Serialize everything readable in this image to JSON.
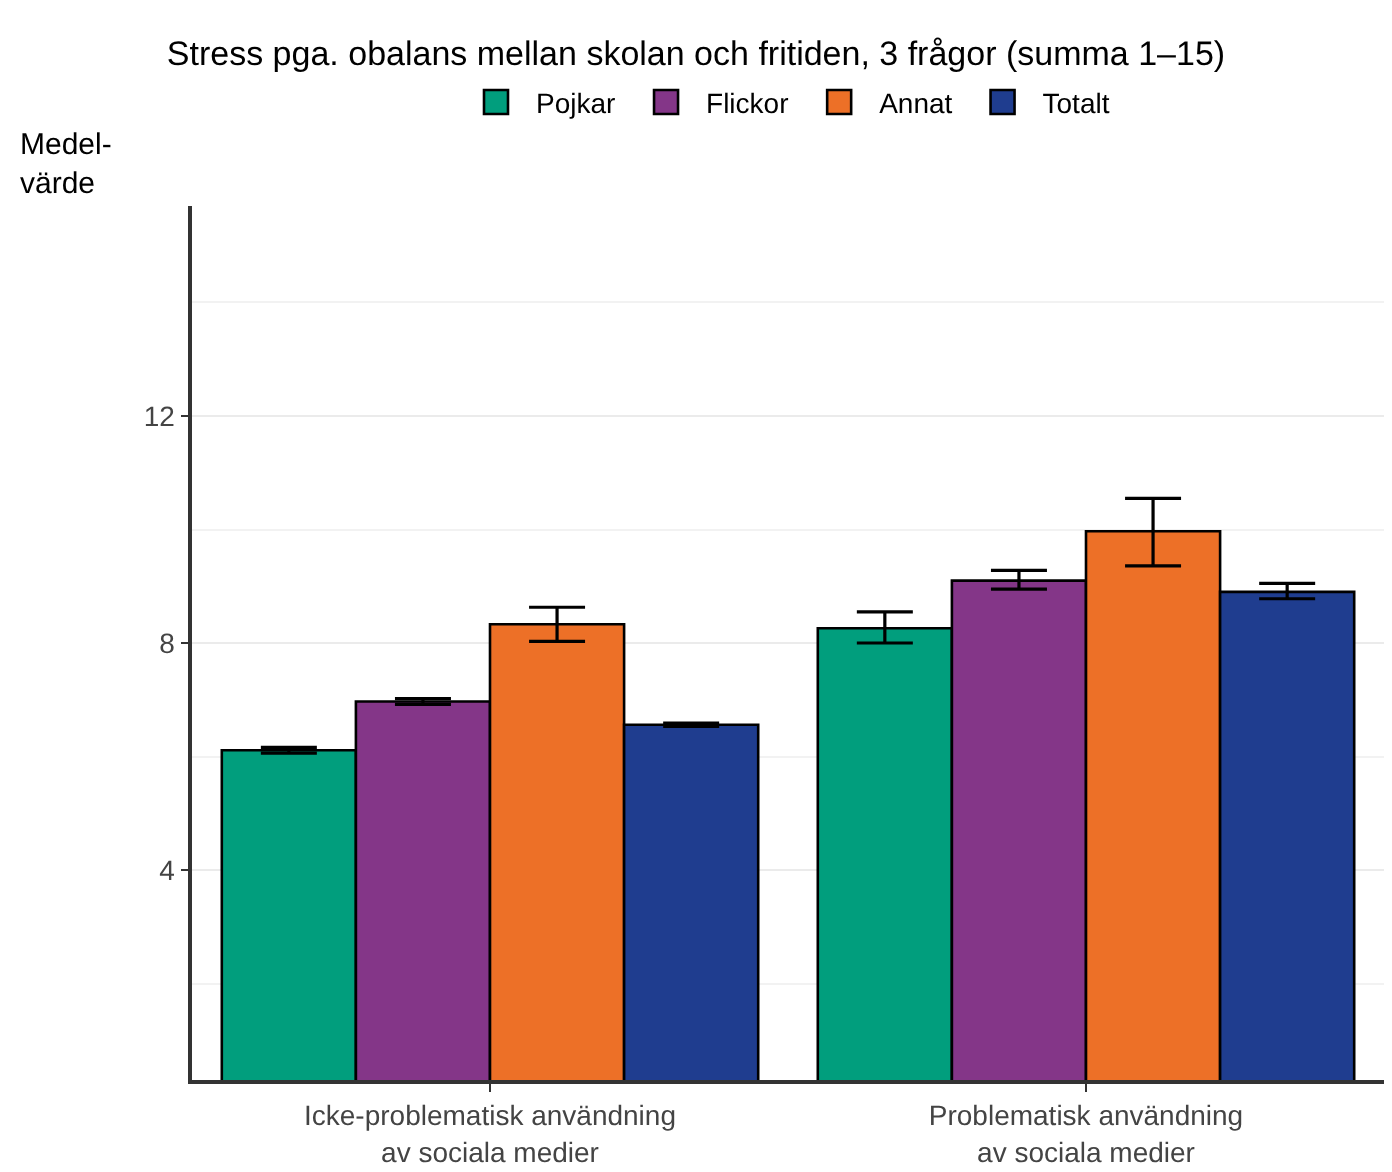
{
  "chart_data": {
    "type": "bar",
    "title": "Stress pga. obalans mellan skolan och fritiden, 3 frågor (summa 1–15)",
    "ylabel": "Medel-värde",
    "categories": [
      "Icke-problematisk användning\nav sociala medier",
      "Problematisk användning\nav sociala medier"
    ],
    "series": [
      {
        "name": "Pojkar",
        "color": "#019e7d",
        "values": [
          6.11,
          8.26
        ],
        "errors": [
          [
            6.06,
            6.16
          ],
          [
            8.0,
            8.55
          ]
        ]
      },
      {
        "name": "Flickor",
        "color": "#843688",
        "values": [
          6.97,
          9.1
        ],
        "errors": [
          [
            6.92,
            7.02
          ],
          [
            8.95,
            9.28
          ]
        ]
      },
      {
        "name": "Annat",
        "color": "#ed7027",
        "values": [
          8.33,
          9.97
        ],
        "errors": [
          [
            8.03,
            8.63
          ],
          [
            9.36,
            10.55
          ]
        ]
      },
      {
        "name": "Totalt",
        "color": "#1f3d8f",
        "values": [
          6.56,
          8.9
        ],
        "errors": [
          [
            6.53,
            6.59
          ],
          [
            8.78,
            9.05
          ]
        ]
      }
    ],
    "ylim": [
      0.3,
      15.7
    ],
    "yticks": [
      4,
      8,
      12
    ],
    "grid": "y",
    "legend": "top"
  }
}
